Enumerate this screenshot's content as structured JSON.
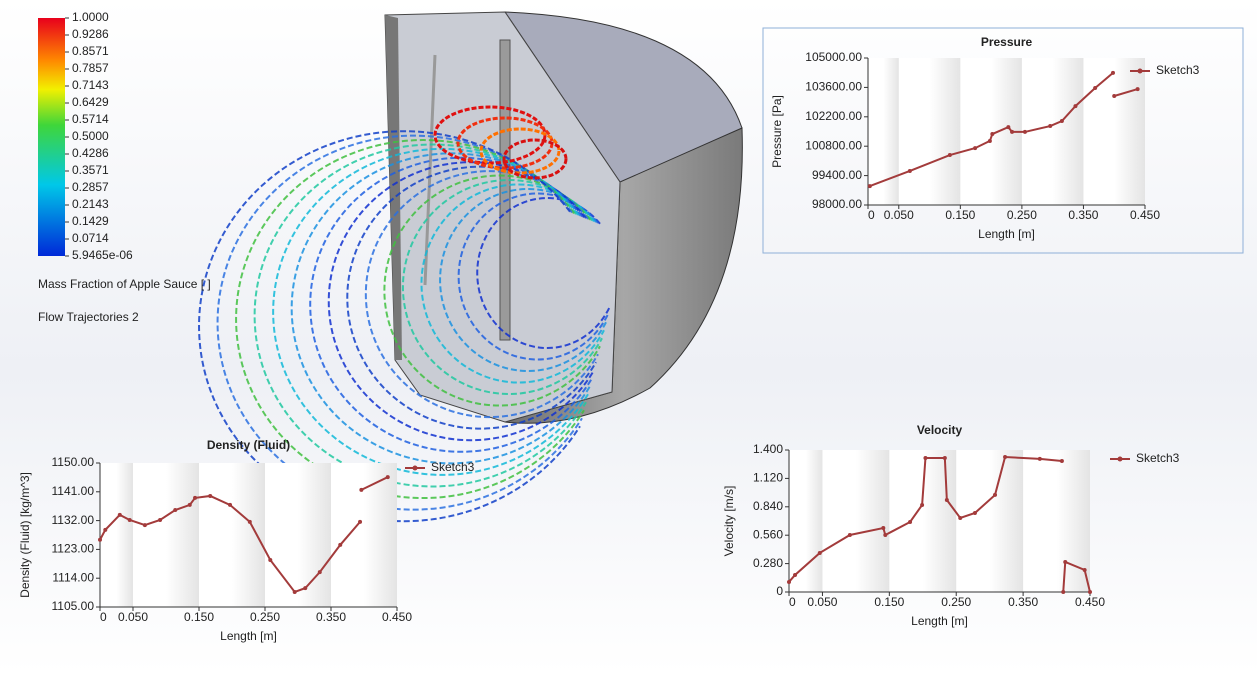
{
  "colorbar": {
    "ticks": [
      {
        "value": 1,
        "label": "1.0000"
      },
      {
        "value": 0.9286,
        "label": "0.9286"
      },
      {
        "value": 0.8571,
        "label": "0.8571"
      },
      {
        "value": 0.7857,
        "label": "0.7857"
      },
      {
        "value": 0.7143,
        "label": "0.7143"
      },
      {
        "value": 0.6429,
        "label": "0.6429"
      },
      {
        "value": 0.5714,
        "label": "0.5714"
      },
      {
        "value": 0.5,
        "label": "0.5000"
      },
      {
        "value": 0.4286,
        "label": "0.4286"
      },
      {
        "value": 0.3571,
        "label": "0.3571"
      },
      {
        "value": 0.2857,
        "label": "0.2857"
      },
      {
        "value": 0.2143,
        "label": "0.2143"
      },
      {
        "value": 0.1429,
        "label": "0.1429"
      },
      {
        "value": 0.0714,
        "label": "0.0714"
      },
      {
        "value": 5.9465e-06,
        "label": "5.9465e-06"
      }
    ],
    "lim": [
      0,
      1
    ],
    "label": "Mass Fraction of Apple Sauce [ ]",
    "caption": "Flow Trajectories 2"
  },
  "chart_data": [
    {
      "type": "line",
      "title": "Pressure",
      "xlabel": "Length [m]",
      "ylabel": "Pressure [Pa]",
      "x": [
        0.003,
        0.068,
        0.133,
        0.174,
        0.198,
        0.202,
        0.228,
        0.234,
        0.255,
        0.296,
        0.315,
        0.337,
        0.369,
        0.398,
        0.399,
        0.4,
        0.438
      ],
      "series": [
        {
          "name": "Sketch3",
          "color": "#a33b3b",
          "values": [
            98900,
            99620,
            100380,
            100710,
            101050,
            101380,
            101710,
            101480,
            101480,
            101760,
            102000,
            102710,
            103570,
            104290,
            null,
            103190,
            103520
          ]
        }
      ],
      "xlim": [
        0,
        0.45
      ],
      "ylim": [
        98000,
        105000
      ],
      "xticks": [
        0,
        {
          "value": 0.05,
          "label": "0.050"
        },
        {
          "value": 0.15,
          "label": "0.150"
        },
        {
          "value": 0.25,
          "label": "0.250"
        },
        {
          "value": 0.35,
          "label": "0.350"
        },
        {
          "value": 0.45,
          "label": "0.450"
        }
      ],
      "yticks": [
        {
          "value": 98000,
          "label": "98000.00"
        },
        {
          "value": 99400,
          "label": "99400.00"
        },
        {
          "value": 100800,
          "label": "100800.00"
        },
        {
          "value": 102200,
          "label": "102200.00"
        },
        {
          "value": 103600,
          "label": "103600.00"
        },
        {
          "value": 105000,
          "label": "105000.00"
        }
      ]
    },
    {
      "type": "line",
      "title": "Density (Fluid)",
      "xlabel": "Length [m]",
      "ylabel": "Density (Fluid) [kg/m^3]",
      "x": [
        0,
        0.008,
        0.03,
        0.045,
        0.068,
        0.091,
        0.114,
        0.136,
        0.144,
        0.167,
        0.197,
        0.227,
        0.258,
        0.295,
        0.311,
        0.333,
        0.364,
        0.394,
        0.395,
        0.396,
        0.436
      ],
      "series": [
        {
          "name": "Sketch3",
          "color": "#a33b3b",
          "values": [
            1126,
            1129.1,
            1133.8,
            1132.2,
            1130.6,
            1132.2,
            1135.3,
            1136.9,
            1139.1,
            1139.7,
            1136.9,
            1131.6,
            1119.7,
            1109.7,
            1110.9,
            1115.9,
            1124.4,
            1131.6,
            null,
            1141.6,
            1145.6
          ]
        }
      ],
      "xlim": [
        0,
        0.45
      ],
      "ylim": [
        1105,
        1150
      ],
      "xticks": [
        0,
        {
          "value": 0.05,
          "label": "0.050"
        },
        {
          "value": 0.15,
          "label": "0.150"
        },
        {
          "value": 0.25,
          "label": "0.250"
        },
        {
          "value": 0.35,
          "label": "0.350"
        },
        {
          "value": 0.45,
          "label": "0.450"
        }
      ],
      "yticks": [
        {
          "value": 1105,
          "label": "1105.00"
        },
        {
          "value": 1114,
          "label": "1114.00"
        },
        {
          "value": 1123,
          "label": "1123.00"
        },
        {
          "value": 1132,
          "label": "1132.00"
        },
        {
          "value": 1141,
          "label": "1141.00"
        },
        {
          "value": 1150,
          "label": "1150.00"
        }
      ]
    },
    {
      "type": "line",
      "title": "Velocity",
      "xlabel": "Length [m]",
      "ylabel": "Velocity [m/s]",
      "x": [
        0,
        0.009,
        0.046,
        0.091,
        0.141,
        0.144,
        0.181,
        0.199,
        0.204,
        0.233,
        0.236,
        0.256,
        0.278,
        0.308,
        0.323,
        0.375,
        0.408,
        0.409,
        0.41,
        0.413,
        0.442,
        0.45
      ],
      "series": [
        {
          "name": "Sketch3",
          "color": "#a33b3b",
          "values": [
            0.099,
            0.168,
            0.385,
            0.562,
            0.631,
            0.562,
            0.69,
            0.858,
            1.321,
            1.321,
            0.907,
            0.73,
            0.779,
            0.957,
            1.331,
            1.312,
            1.292,
            null,
            0,
            0.296,
            0.217,
            0
          ]
        }
      ],
      "xlim": [
        0,
        0.45
      ],
      "ylim": [
        0,
        1.4
      ],
      "xticks": [
        0,
        {
          "value": 0.05,
          "label": "0.050"
        },
        {
          "value": 0.15,
          "label": "0.150"
        },
        {
          "value": 0.25,
          "label": "0.250"
        },
        {
          "value": 0.35,
          "label": "0.350"
        },
        {
          "value": 0.45,
          "label": "0.450"
        }
      ],
      "yticks": [
        0,
        {
          "value": 0.28,
          "label": "0.280"
        },
        {
          "value": 0.56,
          "label": "0.560"
        },
        {
          "value": 0.84,
          "label": "0.840"
        },
        {
          "value": 1.12,
          "label": "1.120"
        },
        {
          "value": 1.4,
          "label": "1.400"
        }
      ]
    }
  ]
}
